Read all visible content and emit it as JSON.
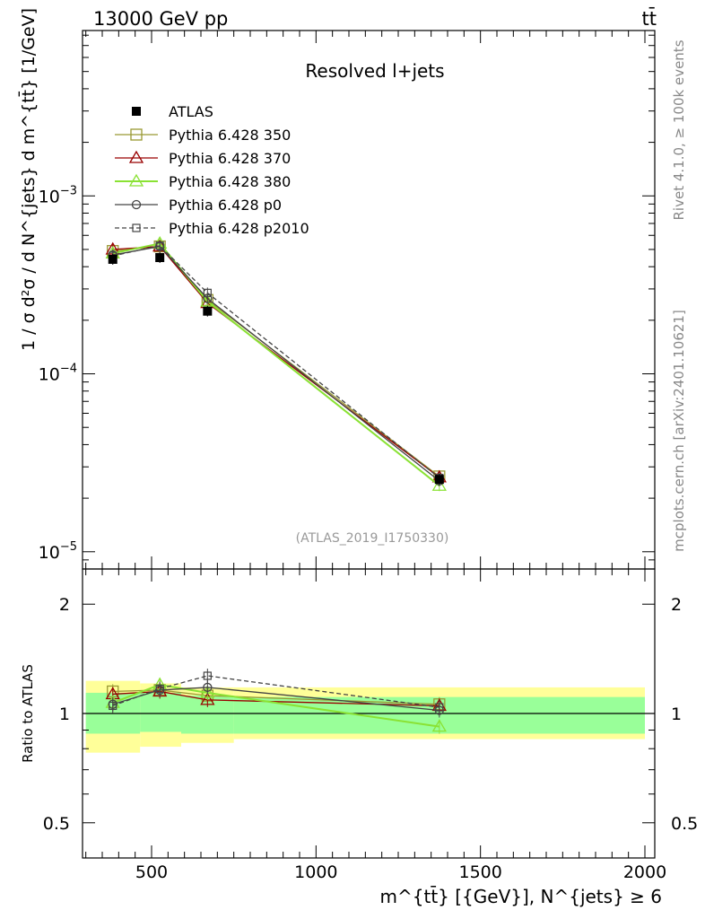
{
  "chart_data": [
    {
      "panel": "main",
      "type": "line",
      "header_left": "13000 GeV pp",
      "header_right": "tt̄",
      "title": "Resolved l+jets",
      "ylabel": "1 / σ d²σ / d N^{jets} d m^{tt̄} [1/GeV]",
      "yscale": "log",
      "ylim": [
        8e-06,
        0.0085
      ],
      "xlim": [
        290,
        2030
      ],
      "ytick_labels": [
        "10^{-5}",
        "10^{-4}",
        "10^{-3}"
      ],
      "analysis_label": "(ATLAS_2019_I1750330)",
      "side_labels": [
        "Rivet 4.1.0, ≥ 100k events",
        "mcplots.cern.ch [arXiv:2401.10621]"
      ],
      "x": [
        382,
        525,
        670,
        1375
      ],
      "series": [
        {
          "name": "ATLAS",
          "values": [
            0.00044,
            0.00045,
            0.000225,
            2.55e-05
          ],
          "color": "#000000",
          "marker": "filled-square",
          "line": "none"
        },
        {
          "name": "Pythia 6.428 350",
          "values": [
            0.00049,
            0.00052,
            0.00026,
            2.65e-05
          ],
          "color": "#999933",
          "marker": "open-square",
          "line": "solid"
        },
        {
          "name": "Pythia 6.428 370",
          "values": [
            0.0005,
            0.00052,
            0.00025,
            2.62e-05
          ],
          "color": "#990000",
          "marker": "open-triangle",
          "line": "solid"
        },
        {
          "name": "Pythia 6.428 380",
          "values": [
            0.000475,
            0.00054,
            0.000255,
            2.35e-05
          ],
          "color": "#8ae234",
          "marker": "open-triangle",
          "line": "solid"
        },
        {
          "name": "Pythia 6.428 p0",
          "values": [
            0.000465,
            0.00052,
            0.000265,
            2.5e-05
          ],
          "color": "#444444",
          "marker": "open-circle",
          "line": "solid"
        },
        {
          "name": "Pythia 6.428 p2010",
          "values": [
            0.00046,
            0.000525,
            0.000285,
            2.6e-05
          ],
          "color": "#444444",
          "marker": "open-small-square",
          "line": "dashed"
        }
      ]
    },
    {
      "panel": "ratio",
      "type": "line",
      "ylabel": "Ratio to ATLAS",
      "xlabel": "m^{tt̄} [{GeV}], N^{jets} ≥ 6",
      "ylim": [
        0.4,
        2.5
      ],
      "ytick_labels": [
        "0.5",
        "1",
        "2"
      ],
      "xtick_labels": [
        "500",
        "1000",
        "1500",
        "2000"
      ],
      "x": [
        382,
        525,
        670,
        1375
      ],
      "bin_edges": [
        300,
        465,
        590,
        750,
        2000
      ],
      "band_inner": [
        [
          0.88,
          1.14
        ],
        [
          0.89,
          1.14
        ],
        [
          0.88,
          1.12
        ],
        [
          0.88,
          1.11
        ]
      ],
      "band_outer": [
        [
          0.78,
          1.23
        ],
        [
          0.81,
          1.21
        ],
        [
          0.83,
          1.18
        ],
        [
          0.85,
          1.18
        ]
      ],
      "series": [
        {
          "name": "Pythia 6.428 350",
          "values": [
            1.15,
            1.16,
            1.12,
            1.06
          ],
          "color": "#999933"
        },
        {
          "name": "Pythia 6.428 370",
          "values": [
            1.13,
            1.15,
            1.09,
            1.05
          ],
          "color": "#990000"
        },
        {
          "name": "Pythia 6.428 380",
          "values": [
            1.07,
            1.2,
            1.14,
            0.92
          ],
          "color": "#8ae234"
        },
        {
          "name": "Pythia 6.428 p0",
          "values": [
            1.06,
            1.16,
            1.18,
            1.02
          ],
          "color": "#444444"
        },
        {
          "name": "Pythia 6.428 p2010",
          "values": [
            1.05,
            1.17,
            1.27,
            1.04
          ],
          "color": "#444444"
        }
      ]
    }
  ]
}
